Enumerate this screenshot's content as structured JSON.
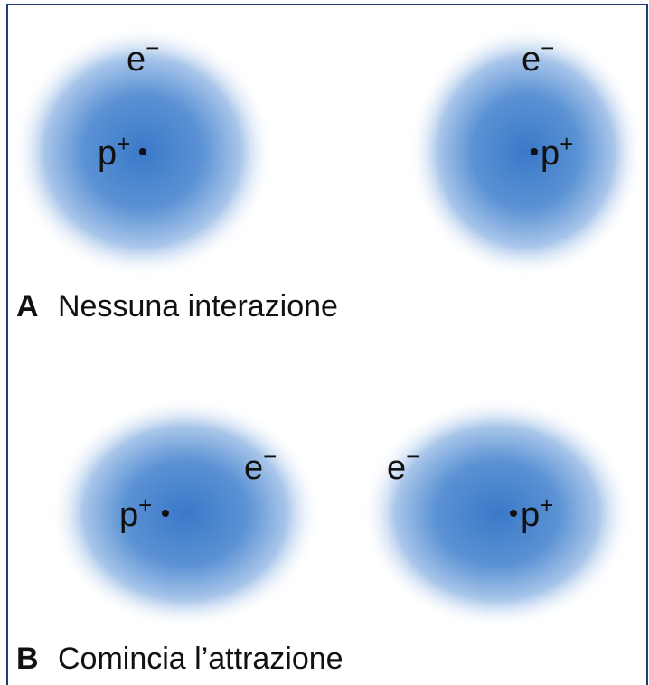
{
  "panels": [
    {
      "letter": "A",
      "caption": "Nessuna interazione",
      "atoms": [
        {
          "proton": {
            "symbol": "p",
            "charge": "+"
          },
          "electron": {
            "symbol": "e",
            "charge": "−"
          }
        },
        {
          "proton": {
            "symbol": "p",
            "charge": "+"
          },
          "electron": {
            "symbol": "e",
            "charge": "−"
          }
        }
      ]
    },
    {
      "letter": "B",
      "caption": "Comincia l’attrazione",
      "atoms": [
        {
          "proton": {
            "symbol": "p",
            "charge": "+"
          },
          "electron": {
            "symbol": "e",
            "charge": "−"
          }
        },
        {
          "proton": {
            "symbol": "p",
            "charge": "+"
          },
          "electron": {
            "symbol": "e",
            "charge": "−"
          }
        }
      ]
    }
  ]
}
